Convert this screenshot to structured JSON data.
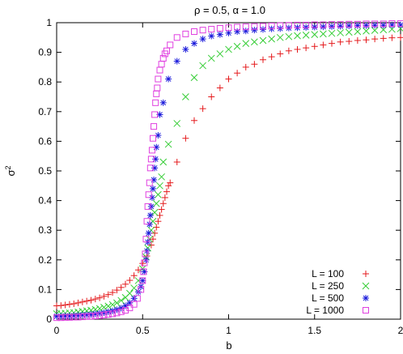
{
  "chart_data": {
    "type": "scatter",
    "title": "ρ = 0.5, α = 1.0",
    "xlabel": "b",
    "ylabel": "σ",
    "ylabel_superscript": "2",
    "xlim": [
      0,
      2
    ],
    "ylim": [
      0,
      1
    ],
    "xticks": [
      "0",
      "0.5",
      "1",
      "1.5",
      "2"
    ],
    "yticks": [
      "0",
      "0.1",
      "0.2",
      "0.3",
      "0.4",
      "0.5",
      "0.6",
      "0.7",
      "0.8",
      "0.9",
      "1"
    ],
    "grid": false,
    "legend_position": "bottom-right",
    "series": [
      {
        "name": "L = 100",
        "color": "#e41a1c",
        "marker": "plus",
        "points": [
          [
            0.0,
            0.045
          ],
          [
            0.025,
            0.046
          ],
          [
            0.05,
            0.048
          ],
          [
            0.075,
            0.05
          ],
          [
            0.1,
            0.052
          ],
          [
            0.125,
            0.055
          ],
          [
            0.15,
            0.058
          ],
          [
            0.175,
            0.061
          ],
          [
            0.2,
            0.064
          ],
          [
            0.225,
            0.068
          ],
          [
            0.25,
            0.072
          ],
          [
            0.275,
            0.077
          ],
          [
            0.3,
            0.083
          ],
          [
            0.325,
            0.09
          ],
          [
            0.35,
            0.098
          ],
          [
            0.375,
            0.107
          ],
          [
            0.4,
            0.118
          ],
          [
            0.425,
            0.131
          ],
          [
            0.45,
            0.147
          ],
          [
            0.475,
            0.166
          ],
          [
            0.5,
            0.188
          ],
          [
            0.525,
            0.213
          ],
          [
            0.55,
            0.25
          ],
          [
            0.56,
            0.27
          ],
          [
            0.57,
            0.29
          ],
          [
            0.58,
            0.31
          ],
          [
            0.59,
            0.33
          ],
          [
            0.6,
            0.35
          ],
          [
            0.61,
            0.37
          ],
          [
            0.62,
            0.39
          ],
          [
            0.63,
            0.41
          ],
          [
            0.64,
            0.43
          ],
          [
            0.65,
            0.45
          ],
          [
            0.66,
            0.46
          ],
          [
            0.7,
            0.53
          ],
          [
            0.75,
            0.61
          ],
          [
            0.8,
            0.67
          ],
          [
            0.85,
            0.71
          ],
          [
            0.9,
            0.75
          ],
          [
            0.95,
            0.78
          ],
          [
            1.0,
            0.81
          ],
          [
            1.05,
            0.83
          ],
          [
            1.1,
            0.85
          ],
          [
            1.15,
            0.86
          ],
          [
            1.2,
            0.875
          ],
          [
            1.25,
            0.885
          ],
          [
            1.3,
            0.895
          ],
          [
            1.35,
            0.905
          ],
          [
            1.4,
            0.91
          ],
          [
            1.45,
            0.915
          ],
          [
            1.5,
            0.92
          ],
          [
            1.55,
            0.925
          ],
          [
            1.6,
            0.93
          ],
          [
            1.65,
            0.935
          ],
          [
            1.7,
            0.937
          ],
          [
            1.75,
            0.94
          ],
          [
            1.8,
            0.942
          ],
          [
            1.85,
            0.945
          ],
          [
            1.9,
            0.947
          ],
          [
            1.95,
            0.949
          ],
          [
            2.0,
            0.95
          ]
        ]
      },
      {
        "name": "L = 250",
        "color": "#33cc33",
        "marker": "cross",
        "points": [
          [
            0.0,
            0.018
          ],
          [
            0.025,
            0.019
          ],
          [
            0.05,
            0.02
          ],
          [
            0.075,
            0.021
          ],
          [
            0.1,
            0.022
          ],
          [
            0.125,
            0.024
          ],
          [
            0.15,
            0.026
          ],
          [
            0.175,
            0.028
          ],
          [
            0.2,
            0.03
          ],
          [
            0.225,
            0.033
          ],
          [
            0.25,
            0.036
          ],
          [
            0.275,
            0.04
          ],
          [
            0.3,
            0.044
          ],
          [
            0.325,
            0.049
          ],
          [
            0.35,
            0.055
          ],
          [
            0.375,
            0.063
          ],
          [
            0.4,
            0.073
          ],
          [
            0.425,
            0.087
          ],
          [
            0.45,
            0.105
          ],
          [
            0.475,
            0.13
          ],
          [
            0.5,
            0.17
          ],
          [
            0.52,
            0.21
          ],
          [
            0.53,
            0.24
          ],
          [
            0.54,
            0.27
          ],
          [
            0.55,
            0.3
          ],
          [
            0.56,
            0.33
          ],
          [
            0.57,
            0.36
          ],
          [
            0.58,
            0.39
          ],
          [
            0.59,
            0.42
          ],
          [
            0.6,
            0.45
          ],
          [
            0.61,
            0.48
          ],
          [
            0.62,
            0.53
          ],
          [
            0.65,
            0.59
          ],
          [
            0.7,
            0.66
          ],
          [
            0.75,
            0.75
          ],
          [
            0.8,
            0.815
          ],
          [
            0.85,
            0.855
          ],
          [
            0.9,
            0.88
          ],
          [
            0.95,
            0.895
          ],
          [
            1.0,
            0.91
          ],
          [
            1.05,
            0.92
          ],
          [
            1.1,
            0.93
          ],
          [
            1.15,
            0.935
          ],
          [
            1.2,
            0.94
          ],
          [
            1.25,
            0.945
          ],
          [
            1.3,
            0.95
          ],
          [
            1.35,
            0.953
          ],
          [
            1.4,
            0.956
          ],
          [
            1.45,
            0.958
          ],
          [
            1.5,
            0.96
          ],
          [
            1.55,
            0.962
          ],
          [
            1.6,
            0.964
          ],
          [
            1.65,
            0.966
          ],
          [
            1.7,
            0.968
          ],
          [
            1.75,
            0.97
          ],
          [
            1.8,
            0.972
          ],
          [
            1.85,
            0.974
          ],
          [
            1.9,
            0.976
          ],
          [
            1.95,
            0.978
          ],
          [
            2.0,
            0.98
          ]
        ]
      },
      {
        "name": "L = 500",
        "color": "#1a1adb",
        "marker": "star",
        "points": [
          [
            0.0,
            0.01
          ],
          [
            0.025,
            0.01
          ],
          [
            0.05,
            0.011
          ],
          [
            0.075,
            0.011
          ],
          [
            0.1,
            0.012
          ],
          [
            0.125,
            0.013
          ],
          [
            0.15,
            0.014
          ],
          [
            0.175,
            0.015
          ],
          [
            0.2,
            0.016
          ],
          [
            0.225,
            0.018
          ],
          [
            0.25,
            0.02
          ],
          [
            0.275,
            0.022
          ],
          [
            0.3,
            0.025
          ],
          [
            0.325,
            0.028
          ],
          [
            0.35,
            0.032
          ],
          [
            0.375,
            0.037
          ],
          [
            0.4,
            0.045
          ],
          [
            0.425,
            0.055
          ],
          [
            0.45,
            0.07
          ],
          [
            0.475,
            0.092
          ],
          [
            0.49,
            0.11
          ],
          [
            0.5,
            0.13
          ],
          [
            0.51,
            0.16
          ],
          [
            0.52,
            0.2
          ],
          [
            0.525,
            0.23
          ],
          [
            0.53,
            0.26
          ],
          [
            0.535,
            0.29
          ],
          [
            0.54,
            0.32
          ],
          [
            0.545,
            0.35
          ],
          [
            0.55,
            0.38
          ],
          [
            0.555,
            0.41
          ],
          [
            0.56,
            0.44
          ],
          [
            0.565,
            0.47
          ],
          [
            0.57,
            0.51
          ],
          [
            0.575,
            0.54
          ],
          [
            0.58,
            0.58
          ],
          [
            0.59,
            0.62
          ],
          [
            0.6,
            0.69
          ],
          [
            0.62,
            0.73
          ],
          [
            0.65,
            0.81
          ],
          [
            0.7,
            0.87
          ],
          [
            0.75,
            0.91
          ],
          [
            0.8,
            0.93
          ],
          [
            0.85,
            0.945
          ],
          [
            0.9,
            0.955
          ],
          [
            0.95,
            0.96
          ],
          [
            1.0,
            0.965
          ],
          [
            1.05,
            0.97
          ],
          [
            1.1,
            0.972
          ],
          [
            1.15,
            0.975
          ],
          [
            1.2,
            0.977
          ],
          [
            1.25,
            0.979
          ],
          [
            1.3,
            0.98
          ],
          [
            1.35,
            0.982
          ],
          [
            1.4,
            0.983
          ],
          [
            1.45,
            0.984
          ],
          [
            1.5,
            0.985
          ],
          [
            1.55,
            0.986
          ],
          [
            1.6,
            0.987
          ],
          [
            1.65,
            0.988
          ],
          [
            1.7,
            0.989
          ],
          [
            1.75,
            0.99
          ],
          [
            1.8,
            0.99
          ],
          [
            1.85,
            0.991
          ],
          [
            1.9,
            0.991
          ],
          [
            1.95,
            0.992
          ],
          [
            2.0,
            0.992
          ]
        ]
      },
      {
        "name": "L = 1000",
        "color": "#e040e0",
        "marker": "square",
        "points": [
          [
            0.0,
            0.005
          ],
          [
            0.025,
            0.005
          ],
          [
            0.05,
            0.006
          ],
          [
            0.075,
            0.006
          ],
          [
            0.1,
            0.007
          ],
          [
            0.125,
            0.007
          ],
          [
            0.15,
            0.008
          ],
          [
            0.175,
            0.009
          ],
          [
            0.2,
            0.01
          ],
          [
            0.225,
            0.011
          ],
          [
            0.25,
            0.012
          ],
          [
            0.275,
            0.014
          ],
          [
            0.3,
            0.016
          ],
          [
            0.325,
            0.018
          ],
          [
            0.35,
            0.021
          ],
          [
            0.375,
            0.025
          ],
          [
            0.4,
            0.03
          ],
          [
            0.425,
            0.038
          ],
          [
            0.45,
            0.05
          ],
          [
            0.47,
            0.07
          ],
          [
            0.49,
            0.1
          ],
          [
            0.5,
            0.13
          ],
          [
            0.505,
            0.16
          ],
          [
            0.51,
            0.19
          ],
          [
            0.515,
            0.22
          ],
          [
            0.52,
            0.27
          ],
          [
            0.525,
            0.33
          ],
          [
            0.53,
            0.38
          ],
          [
            0.535,
            0.42
          ],
          [
            0.54,
            0.46
          ],
          [
            0.545,
            0.51
          ],
          [
            0.55,
            0.54
          ],
          [
            0.555,
            0.57
          ],
          [
            0.56,
            0.61
          ],
          [
            0.565,
            0.65
          ],
          [
            0.57,
            0.69
          ],
          [
            0.575,
            0.73
          ],
          [
            0.58,
            0.76
          ],
          [
            0.585,
            0.78
          ],
          [
            0.59,
            0.81
          ],
          [
            0.6,
            0.84
          ],
          [
            0.61,
            0.86
          ],
          [
            0.62,
            0.88
          ],
          [
            0.63,
            0.895
          ],
          [
            0.64,
            0.905
          ],
          [
            0.66,
            0.925
          ],
          [
            0.7,
            0.95
          ],
          [
            0.75,
            0.962
          ],
          [
            0.8,
            0.97
          ],
          [
            0.85,
            0.975
          ],
          [
            0.9,
            0.978
          ],
          [
            0.95,
            0.981
          ],
          [
            1.0,
            0.983
          ],
          [
            1.05,
            0.985
          ],
          [
            1.1,
            0.986
          ],
          [
            1.15,
            0.987
          ],
          [
            1.2,
            0.988
          ],
          [
            1.25,
            0.989
          ],
          [
            1.3,
            0.99
          ],
          [
            1.35,
            0.991
          ],
          [
            1.4,
            0.992
          ],
          [
            1.45,
            0.992
          ],
          [
            1.5,
            0.993
          ],
          [
            1.55,
            0.993
          ],
          [
            1.6,
            0.994
          ],
          [
            1.65,
            0.994
          ],
          [
            1.7,
            0.995
          ],
          [
            1.75,
            0.995
          ],
          [
            1.8,
            0.996
          ],
          [
            1.85,
            0.996
          ],
          [
            1.9,
            0.996
          ],
          [
            1.95,
            0.997
          ],
          [
            2.0,
            0.997
          ]
        ]
      }
    ]
  }
}
